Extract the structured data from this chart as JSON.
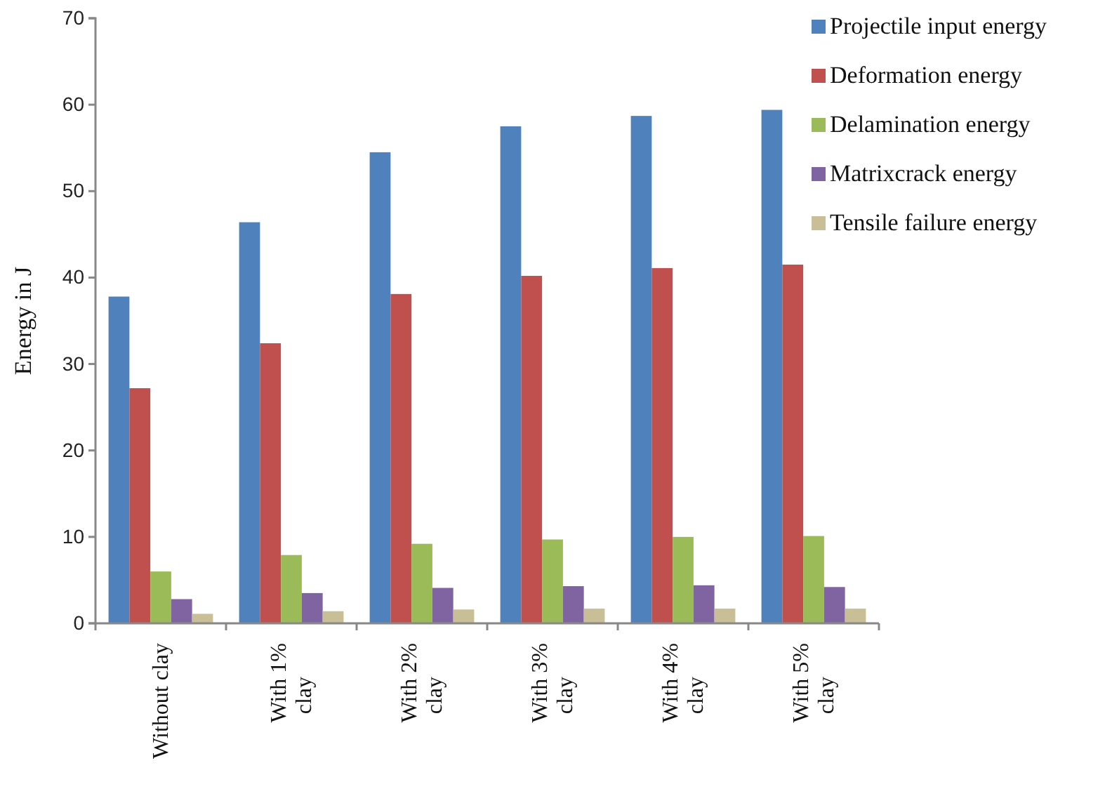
{
  "chart_data": {
    "type": "bar",
    "ylabel": "Energy in J",
    "categories": [
      "Without clay",
      "With 1% clay",
      "With 2% clay",
      "With 3% clay",
      "With 4% clay",
      "With 5% clay"
    ],
    "series": [
      {
        "name": "Projectile input energy",
        "color": "#4f81bd",
        "values": [
          37.8,
          46.4,
          54.5,
          57.5,
          58.7,
          59.4
        ]
      },
      {
        "name": "Deformation energy",
        "color": "#c0504d",
        "values": [
          27.2,
          32.4,
          38.1,
          40.2,
          41.1,
          41.5
        ]
      },
      {
        "name": "Delamination energy",
        "color": "#9bbb59",
        "values": [
          6.0,
          7.9,
          9.2,
          9.7,
          10.0,
          10.1
        ]
      },
      {
        "name": "Matrixcrack energy",
        "color": "#8064a2",
        "values": [
          2.8,
          3.5,
          4.1,
          4.3,
          4.4,
          4.2
        ]
      },
      {
        "name": "Tensile failure energy",
        "color": "#c9bf96",
        "values": [
          1.1,
          1.4,
          1.6,
          1.7,
          1.7,
          1.7
        ]
      }
    ],
    "ylim": [
      0,
      70
    ],
    "yticks": [
      0,
      10,
      20,
      30,
      40,
      50,
      60,
      70
    ],
    "grid": false,
    "legend": "top right"
  }
}
